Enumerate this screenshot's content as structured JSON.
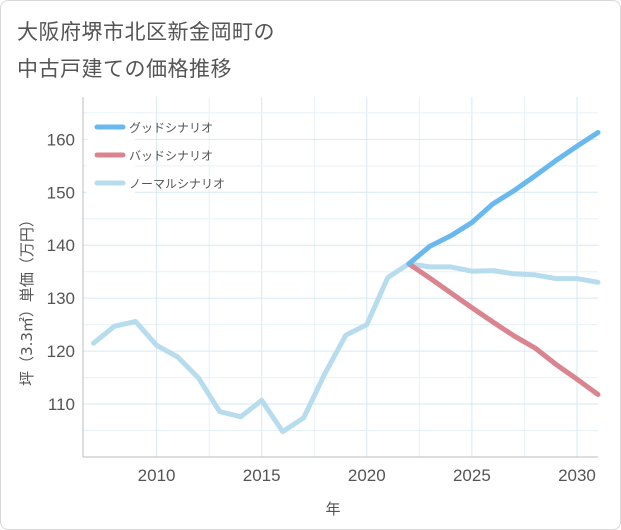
{
  "title_lines": [
    "大阪府堺市北区新金岡町の",
    "中古戸建ての価格推移"
  ],
  "chart_data": {
    "type": "line",
    "title": "大阪府堺市北区新金岡町の中古戸建ての価格推移",
    "xlabel": "年",
    "ylabel": "坪（3.3㎡）単価（万円）",
    "xlim": [
      2006.5,
      2031
    ],
    "ylim": [
      100,
      168
    ],
    "xticks": [
      2010,
      2015,
      2020,
      2025,
      2030
    ],
    "yticks": [
      110,
      120,
      130,
      140,
      150,
      160
    ],
    "grid": true,
    "legend_position": "top-left",
    "series": [
      {
        "name": "グッドシナリオ",
        "color": "#6ab9ee",
        "x": [
          2022,
          2023,
          2024,
          2025,
          2026,
          2027,
          2028,
          2029,
          2030,
          2031
        ],
        "y": [
          136.5,
          139.8,
          141.8,
          144.3,
          147.8,
          150.3,
          153.1,
          156.0,
          158.7,
          161.3
        ]
      },
      {
        "name": "バッドシナリオ",
        "color": "#d9848f",
        "x": [
          2022,
          2023,
          2024,
          2025,
          2026,
          2027,
          2028,
          2029,
          2030,
          2031
        ],
        "y": [
          136.5,
          133.8,
          131.0,
          128.2,
          125.5,
          122.9,
          120.6,
          117.5,
          114.7,
          111.8
        ]
      },
      {
        "name": "ノーマルシナリオ",
        "color": "#b7dcee",
        "x": [
          2007,
          2008,
          2009,
          2010,
          2011,
          2012,
          2013,
          2014,
          2015,
          2016,
          2017,
          2018,
          2019,
          2020,
          2021,
          2022,
          2023,
          2024,
          2025,
          2026,
          2027,
          2028,
          2029,
          2030,
          2031
        ],
        "y": [
          121.5,
          124.7,
          125.6,
          121.1,
          118.9,
          114.9,
          108.6,
          107.6,
          110.7,
          104.8,
          107.4,
          115.7,
          123.0,
          125.0,
          133.9,
          136.5,
          135.9,
          135.9,
          135.1,
          135.2,
          134.6,
          134.4,
          133.7,
          133.7,
          133.0
        ]
      }
    ]
  }
}
